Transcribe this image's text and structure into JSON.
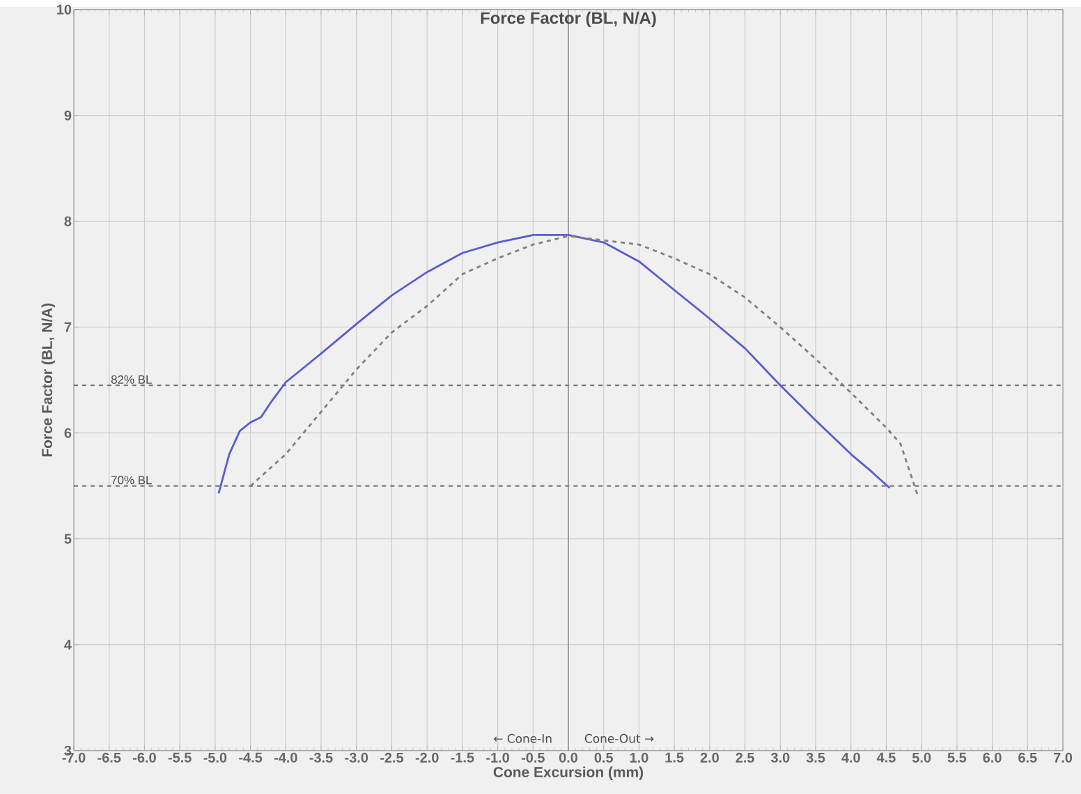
{
  "chart_data": {
    "type": "line",
    "title": "Force Factor (BL, N/A)",
    "xlabel": "Cone Excursion (mm)",
    "ylabel": "Force Factor (BL, N/A)",
    "annotations": [
      "← Cone-In",
      "Cone-Out →"
    ],
    "series": [
      {
        "color": "#5b5bd0",
        "line_style": "solid",
        "x": [
          -4.95,
          -4.8,
          -4.65,
          -4.5,
          -4.35,
          -4.2,
          -4.0,
          -3.5,
          -3.0,
          -2.5,
          -2.0,
          -1.5,
          -1.0,
          -0.5,
          0,
          0.5,
          1.0,
          1.5,
          2.0,
          2.5,
          3.0,
          3.5,
          4.0,
          4.3,
          4.55
        ],
        "values": [
          5.43,
          5.8,
          6.02,
          6.1,
          6.15,
          6.3,
          6.48,
          6.75,
          7.03,
          7.3,
          7.52,
          7.7,
          7.8,
          7.87,
          7.87,
          7.8,
          7.62,
          7.35,
          7.08,
          6.8,
          6.45,
          6.12,
          5.8,
          5.63,
          5.48
        ]
      },
      {
        "color": "#808080",
        "line_style": "dashed",
        "x": [
          -4.5,
          -4.0,
          -3.5,
          -3.0,
          -2.5,
          -2.0,
          -1.5,
          -1.0,
          -0.5,
          0,
          0.5,
          1.0,
          1.5,
          2.0,
          2.5,
          3.0,
          3.5,
          4.0,
          4.5,
          4.7,
          4.85,
          4.95
        ],
        "values": [
          5.5,
          5.8,
          6.2,
          6.6,
          6.95,
          7.2,
          7.5,
          7.65,
          7.78,
          7.86,
          7.82,
          7.78,
          7.65,
          7.5,
          7.28,
          7.0,
          6.7,
          6.38,
          6.05,
          5.9,
          5.6,
          5.4
        ]
      }
    ],
    "ref_lines": [
      {
        "axis": "y",
        "value": 6.45,
        "label": "82% BL",
        "color": "#707070",
        "line_style": "dashed"
      },
      {
        "axis": "y",
        "value": 5.5,
        "label": "70% BL",
        "color": "#707070",
        "line_style": "dashed"
      },
      {
        "axis": "x",
        "value": 0,
        "color": "#909090",
        "line_style": "solid"
      }
    ],
    "xlim": [
      -7,
      7
    ],
    "xticks": [
      {
        "value": -7,
        "label": "-7.0"
      },
      {
        "value": -6.5,
        "label": "-6.5"
      },
      {
        "value": -6,
        "label": "-6.0"
      },
      {
        "value": -5.5,
        "label": "-5.5"
      },
      {
        "value": -5,
        "label": "-5.0"
      },
      {
        "value": -4.5,
        "label": "-4.5"
      },
      {
        "value": -4,
        "label": "-4.0"
      },
      {
        "value": -3.5,
        "label": "-3.5"
      },
      {
        "value": -3,
        "label": "-3.0"
      },
      {
        "value": -2.5,
        "label": "-2.5"
      },
      {
        "value": -2,
        "label": "-2.0"
      },
      {
        "value": -1.5,
        "label": "-1.5"
      },
      {
        "value": -1,
        "label": "-1.0"
      },
      {
        "value": -0.5,
        "label": "-0.5"
      },
      {
        "value": 0,
        "label": "0.0"
      },
      {
        "value": 0.5,
        "label": "0.5"
      },
      {
        "value": 1,
        "label": "1.0"
      },
      {
        "value": 1.5,
        "label": "1.5"
      },
      {
        "value": 2,
        "label": "2.0"
      },
      {
        "value": 2.5,
        "label": "2.5"
      },
      {
        "value": 3,
        "label": "3.0"
      },
      {
        "value": 3.5,
        "label": "3.5"
      },
      {
        "value": 4,
        "label": "4.0"
      },
      {
        "value": 4.5,
        "label": "4.5"
      },
      {
        "value": 5,
        "label": "5.0"
      },
      {
        "value": 5.5,
        "label": "5.5"
      },
      {
        "value": 6,
        "label": "6.0"
      },
      {
        "value": 6.5,
        "label": "6.5"
      },
      {
        "value": 7,
        "label": "7.0"
      }
    ],
    "ylim": [
      3,
      10
    ],
    "yticks": [
      3,
      4,
      5,
      6,
      7,
      8,
      9,
      10
    ],
    "grid": true,
    "legend": false,
    "marker": "none"
  }
}
